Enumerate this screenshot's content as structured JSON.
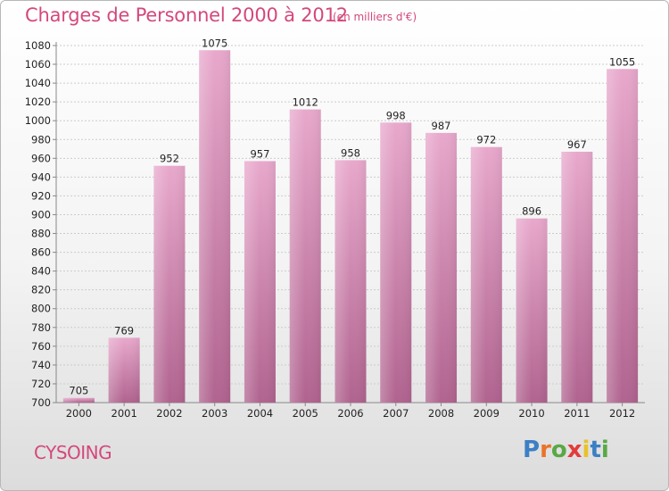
{
  "title": "Charges de Personnel 2000 à 2012",
  "subtitle": "(en milliers d'€)",
  "city": "CYSOING",
  "logo": {
    "letters": [
      "P",
      "r",
      "o",
      "x",
      "i",
      "t",
      "i"
    ],
    "colors": [
      "#3c7fc4",
      "#e8742a",
      "#5aa845",
      "#e23c3c",
      "#e8c22a",
      "#3c7fc4",
      "#5aa845"
    ]
  },
  "colors": {
    "accent": "#d4487c",
    "bar_light": "#e8a8cc",
    "bar_dark": "#b0638f",
    "grid": "#cccccc"
  },
  "chart_data": {
    "type": "bar",
    "title": "Charges de Personnel 2000 à 2012",
    "categories": [
      "2000",
      "2001",
      "2002",
      "2003",
      "2004",
      "2005",
      "2006",
      "2007",
      "2008",
      "2009",
      "2010",
      "2011",
      "2012"
    ],
    "values": [
      705,
      769,
      952,
      1075,
      957,
      1012,
      958,
      998,
      987,
      972,
      896,
      967,
      1055
    ],
    "ylim": [
      700,
      1080
    ],
    "yticks": [
      700,
      720,
      740,
      760,
      780,
      800,
      820,
      840,
      860,
      880,
      900,
      920,
      940,
      960,
      980,
      1000,
      1020,
      1040,
      1060,
      1080
    ],
    "grid": true,
    "xlabel": "",
    "ylabel": ""
  }
}
